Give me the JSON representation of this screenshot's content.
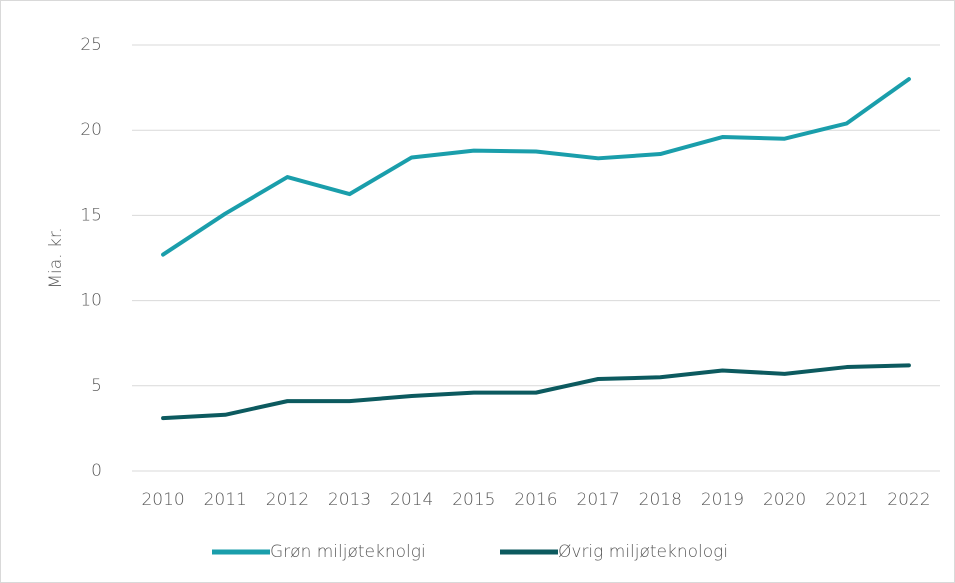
{
  "chart_data": {
    "type": "line",
    "y_label": "Mia. kr.",
    "categories": [
      "2010",
      "2011",
      "2012",
      "2013",
      "2014",
      "2015",
      "2016",
      "2017",
      "2018",
      "2019",
      "2020",
      "2021",
      "2022"
    ],
    "series": [
      {
        "name": "Grøn miljøteknolgi",
        "color": "#1a9eab",
        "values": [
          12.7,
          15.1,
          17.25,
          16.25,
          18.4,
          18.8,
          18.75,
          18.35,
          18.6,
          19.6,
          19.5,
          20.4,
          23.0
        ]
      },
      {
        "name": "Øvrig miljøteknologi",
        "color": "#0c5a5f",
        "values": [
          3.1,
          3.3,
          4.1,
          4.1,
          4.4,
          4.6,
          4.6,
          5.4,
          5.5,
          5.9,
          5.7,
          6.1,
          6.2
        ]
      }
    ],
    "ylim": [
      0,
      25
    ],
    "yticks": [
      0,
      5,
      10,
      15,
      20,
      25
    ],
    "grid": true,
    "legend": "bottom"
  }
}
